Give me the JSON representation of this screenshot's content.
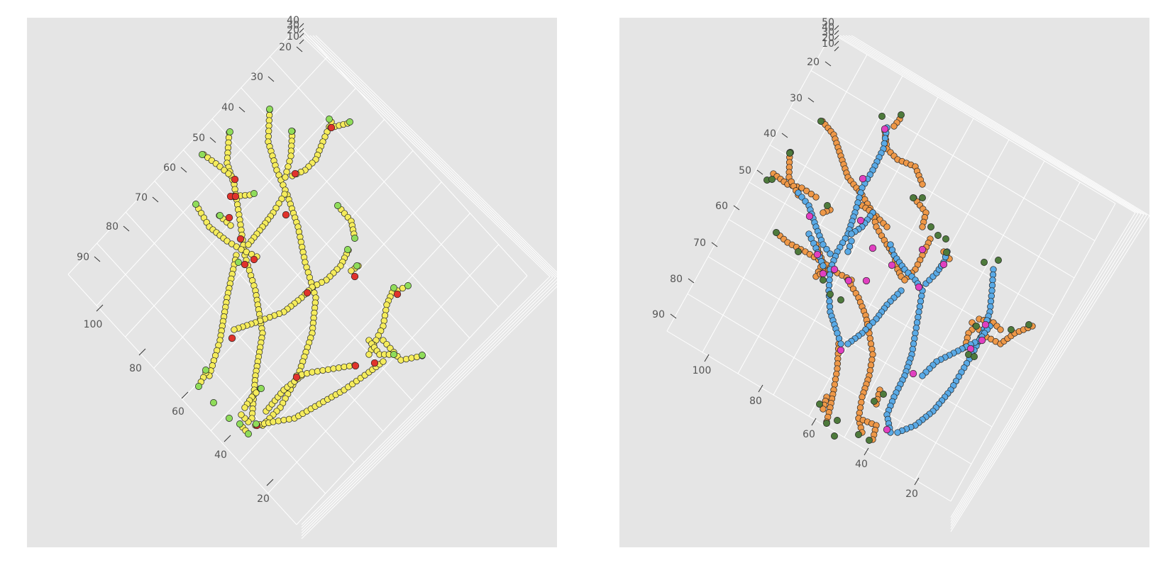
{
  "colors": {
    "background": "#e5e5e5",
    "grid": "#ffffff",
    "tick_text": "#555555",
    "left_path": "#f5ec5c",
    "left_branch": "#e0332c",
    "left_endpoint": "#8fdc5a",
    "right_segment_a": "#5aaae6",
    "right_segment_b": "#ee9848",
    "right_branch": "#e040c0",
    "right_endpoint": "#4e7a3c"
  },
  "chart_data": [
    {
      "type": "scatter",
      "projection": "3d",
      "grid": true,
      "axis_y_ticks": [
        "20",
        "30",
        "40",
        "50",
        "60",
        "70",
        "80",
        "90"
      ],
      "axis_x_ticks": [
        "100",
        "80",
        "60",
        "40",
        "20"
      ],
      "axis_z_ticks": [
        "10",
        "20",
        "30",
        "40"
      ],
      "legend": "none",
      "series": [
        {
          "role": "path",
          "color": "#f5ec5c"
        },
        {
          "role": "branch point",
          "color": "#e0332c"
        },
        {
          "role": "endpoint",
          "color": "#8fdc5a"
        }
      ]
    },
    {
      "type": "scatter",
      "projection": "3d",
      "grid": true,
      "axis_y_ticks": [
        "20",
        "30",
        "40",
        "50",
        "60",
        "70",
        "80",
        "90"
      ],
      "axis_x_ticks": [
        "100",
        "80",
        "60",
        "40",
        "20"
      ],
      "axis_z_ticks": [
        "10",
        "20",
        "30",
        "40",
        "50"
      ],
      "legend": "none",
      "series": [
        {
          "role": "segment group A",
          "color": "#5aaae6"
        },
        {
          "role": "segment group B",
          "color": "#ee9848"
        },
        {
          "role": "branch point",
          "color": "#e040c0"
        },
        {
          "role": "endpoint",
          "color": "#4e7a3c"
        }
      ]
    }
  ]
}
